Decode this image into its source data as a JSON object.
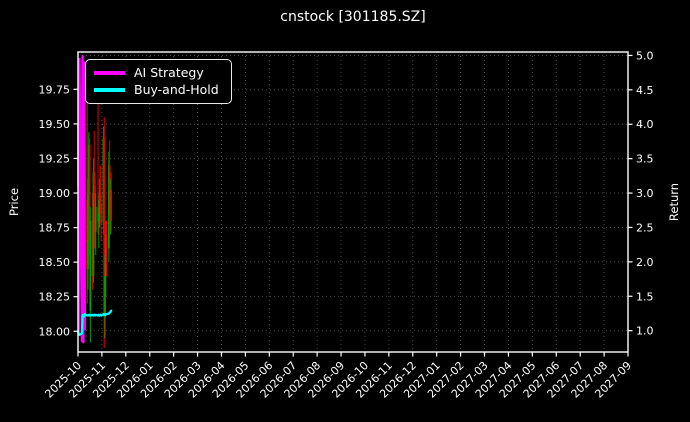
{
  "title": "cnstock [301185.SZ]",
  "axes": {
    "left_label": "Price",
    "right_label": "Return"
  },
  "legend": {
    "items": [
      {
        "label": "AI Strategy",
        "color": "#ff00ff"
      },
      {
        "label": "Buy-and-Hold",
        "color": "#00ffff"
      }
    ]
  },
  "colors": {
    "background": "#000000",
    "text": "#ffffff",
    "spine": "#ffffff",
    "grid": "#9a9a9a",
    "candle_up": "#00a000",
    "candle_down": "#e80000",
    "ai_strategy": "#ff00ff",
    "buy_and_hold": "#00ffff"
  },
  "chart_data": {
    "type": "candlestick+line",
    "title": "cnstock [301185.SZ]",
    "grid": "dotted",
    "legend_position": "upper-left",
    "x_tick_labels": [
      "2025-10",
      "2025-11",
      "2025-12",
      "2026-01",
      "2026-02",
      "2026-03",
      "2026-04",
      "2026-05",
      "2026-06",
      "2026-07",
      "2026-08",
      "2026-09",
      "2026-10",
      "2026-11",
      "2026-12",
      "2027-01",
      "2027-02",
      "2027-03",
      "2027-04",
      "2027-05",
      "2027-06",
      "2027-07",
      "2027-08",
      "2027-09"
    ],
    "left_axis": {
      "label": "Price",
      "ticks": [
        18.0,
        18.25,
        18.5,
        18.75,
        19.0,
        19.25,
        19.5,
        19.75
      ],
      "tick_labels": [
        "18.00",
        "18.25",
        "18.50",
        "18.75",
        "19.00",
        "19.25",
        "19.50",
        "19.75"
      ],
      "lim": [
        17.85,
        20.02
      ]
    },
    "right_axis": {
      "label": "Return",
      "ticks": [
        1.0,
        1.5,
        2.0,
        2.5,
        3.0,
        3.5,
        4.0,
        4.5,
        5.0
      ],
      "tick_labels": [
        "1.0",
        "1.5",
        "2.0",
        "2.5",
        "3.0",
        "3.5",
        "4.0",
        "4.5",
        "5.0"
      ],
      "lim": [
        0.69,
        5.05
      ]
    },
    "candles": [
      {
        "d": "2025-10-01",
        "o": 19.05,
        "h": 19.62,
        "l": 18.9,
        "c": 19.5
      },
      {
        "d": "2025-10-02",
        "o": 19.5,
        "h": 19.58,
        "l": 19.0,
        "c": 19.1
      },
      {
        "d": "2025-10-03",
        "o": 19.1,
        "h": 19.45,
        "l": 18.85,
        "c": 19.38
      },
      {
        "d": "2025-10-06",
        "o": 19.38,
        "h": 19.6,
        "l": 18.05,
        "c": 18.32
      },
      {
        "d": "2025-10-07",
        "o": 18.32,
        "h": 19.6,
        "l": 18.25,
        "c": 19.45
      },
      {
        "d": "2025-10-08",
        "o": 19.45,
        "h": 19.52,
        "l": 18.9,
        "c": 19.05
      },
      {
        "d": "2025-10-09",
        "o": 19.05,
        "h": 19.35,
        "l": 18.52,
        "c": 19.3
      },
      {
        "d": "2025-10-10",
        "o": 19.3,
        "h": 19.33,
        "l": 18.75,
        "c": 18.95
      },
      {
        "d": "2025-10-13",
        "o": 18.95,
        "h": 19.65,
        "l": 18.2,
        "c": 18.45
      },
      {
        "d": "2025-10-14",
        "o": 18.45,
        "h": 19.1,
        "l": 18.3,
        "c": 19.0
      },
      {
        "d": "2025-10-15",
        "o": 19.0,
        "h": 19.44,
        "l": 18.8,
        "c": 19.35
      },
      {
        "d": "2025-10-16",
        "o": 19.35,
        "h": 19.4,
        "l": 18.55,
        "c": 18.65
      },
      {
        "d": "2025-10-17",
        "o": 18.15,
        "h": 18.9,
        "l": 17.92,
        "c": 18.8
      },
      {
        "d": "2025-10-20",
        "o": 18.8,
        "h": 19.0,
        "l": 18.3,
        "c": 18.4
      },
      {
        "d": "2025-10-21",
        "o": 18.4,
        "h": 19.25,
        "l": 18.35,
        "c": 19.15
      },
      {
        "d": "2025-10-22",
        "o": 19.15,
        "h": 19.45,
        "l": 18.95,
        "c": 19.05
      },
      {
        "d": "2025-10-23",
        "o": 19.05,
        "h": 19.1,
        "l": 18.6,
        "c": 18.72
      },
      {
        "d": "2025-10-24",
        "o": 18.72,
        "h": 19.0,
        "l": 18.55,
        "c": 18.9
      },
      {
        "d": "2025-10-27",
        "o": 18.9,
        "h": 19.92,
        "l": 18.7,
        "c": 18.8
      },
      {
        "d": "2025-10-28",
        "o": 18.8,
        "h": 18.95,
        "l": 18.6,
        "c": 18.85
      },
      {
        "d": "2025-10-29",
        "o": 18.85,
        "h": 19.1,
        "l": 18.75,
        "c": 19.0
      },
      {
        "d": "2025-10-30",
        "o": 19.0,
        "h": 19.2,
        "l": 18.85,
        "c": 18.92
      },
      {
        "d": "2025-10-31",
        "o": 18.92,
        "h": 19.0,
        "l": 18.65,
        "c": 18.78
      },
      {
        "d": "2025-11-03",
        "o": 18.78,
        "h": 19.48,
        "l": 18.7,
        "c": 19.4
      },
      {
        "d": "2025-11-04",
        "o": 19.4,
        "h": 19.55,
        "l": 17.88,
        "c": 18.1
      },
      {
        "d": "2025-11-05",
        "o": 18.1,
        "h": 18.55,
        "l": 17.95,
        "c": 18.4
      },
      {
        "d": "2025-11-06",
        "o": 18.4,
        "h": 18.8,
        "l": 18.25,
        "c": 18.7
      },
      {
        "d": "2025-11-07",
        "o": 18.7,
        "h": 18.8,
        "l": 18.4,
        "c": 18.6
      },
      {
        "d": "2025-11-10",
        "o": 18.6,
        "h": 19.3,
        "l": 18.5,
        "c": 19.2
      },
      {
        "d": "2025-11-11",
        "o": 19.2,
        "h": 19.38,
        "l": 18.8,
        "c": 18.88
      },
      {
        "d": "2025-11-12",
        "o": 18.88,
        "h": 19.1,
        "l": 18.7,
        "c": 19.02
      },
      {
        "d": "2025-11-13",
        "o": 19.02,
        "h": 19.15,
        "l": 18.72,
        "c": 18.8
      }
    ],
    "series": [
      {
        "name": "AI Strategy",
        "axis": "right",
        "color": "#ff00ff",
        "points": [
          [
            "2025-10-02",
            1.0
          ],
          [
            "2025-10-03",
            4.95
          ],
          [
            "2025-10-06",
            0.85
          ],
          [
            "2025-10-07",
            4.99
          ],
          [
            "2025-10-08",
            0.83
          ],
          [
            "2025-10-09",
            4.9
          ],
          [
            "2025-10-10",
            1.02
          ]
        ]
      },
      {
        "name": "Buy-and-Hold",
        "axis": "right",
        "color": "#00ffff",
        "points": [
          [
            "2025-10-01",
            0.99
          ],
          [
            "2025-10-02",
            0.96
          ],
          [
            "2025-10-03",
            0.94
          ],
          [
            "2025-10-06",
            0.96
          ],
          [
            "2025-10-07",
            1.22
          ],
          [
            "2025-10-08",
            1.23
          ],
          [
            "2025-10-09",
            1.21
          ],
          [
            "2025-10-10",
            1.24
          ],
          [
            "2025-10-13",
            1.22
          ],
          [
            "2025-10-14",
            1.23
          ],
          [
            "2025-10-15",
            1.22
          ],
          [
            "2025-10-16",
            1.23
          ],
          [
            "2025-10-17",
            1.22
          ],
          [
            "2025-10-20",
            1.23
          ],
          [
            "2025-10-21",
            1.22
          ],
          [
            "2025-10-22",
            1.23
          ],
          [
            "2025-10-23",
            1.22
          ],
          [
            "2025-10-24",
            1.23
          ],
          [
            "2025-10-27",
            1.22
          ],
          [
            "2025-10-28",
            1.23
          ],
          [
            "2025-10-29",
            1.22
          ],
          [
            "2025-10-30",
            1.23
          ],
          [
            "2025-10-31",
            1.22
          ],
          [
            "2025-11-03",
            1.24
          ],
          [
            "2025-11-04",
            1.23
          ],
          [
            "2025-11-05",
            1.24
          ],
          [
            "2025-11-06",
            1.23
          ],
          [
            "2025-11-07",
            1.24
          ],
          [
            "2025-11-10",
            1.25
          ],
          [
            "2025-11-11",
            1.26
          ],
          [
            "2025-11-12",
            1.27
          ],
          [
            "2025-11-13",
            1.29
          ]
        ]
      }
    ]
  }
}
